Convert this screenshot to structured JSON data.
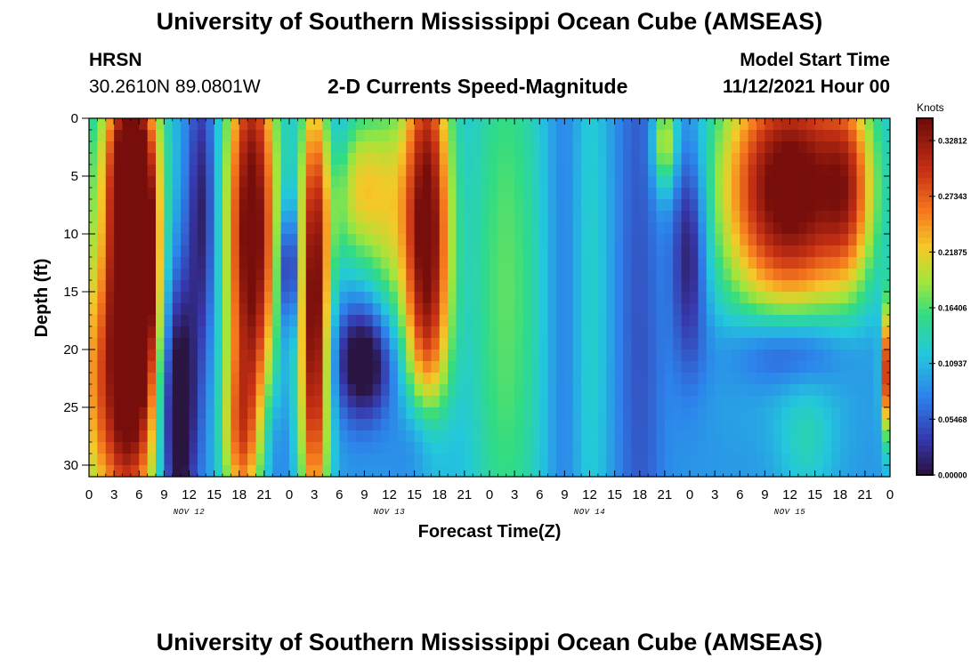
{
  "header": {
    "title": "University of Southern Mississippi Ocean Cube (AMSEAS)",
    "station": "HRSN",
    "coordinates": "30.2610N  89.0801W",
    "subtitle": "2-D Currents Speed-Magnitude",
    "model_start_label": "Model Start Time",
    "model_start_value": "11/12/2021 Hour 00"
  },
  "footer": {
    "title": "University of Southern Mississippi Ocean Cube (AMSEAS)"
  },
  "chart_data": {
    "type": "heatmap",
    "title": "2-D Currents Speed-Magnitude",
    "xlabel": "Forecast Time(Z)",
    "ylabel": "Depth (ft)",
    "xlim": [
      0,
      96
    ],
    "ylim": [
      0,
      31
    ],
    "x_tick_values": [
      0,
      3,
      6,
      9,
      12,
      15,
      18,
      21,
      24,
      27,
      30,
      33,
      36,
      39,
      42,
      45,
      48,
      51,
      54,
      57,
      60,
      63,
      66,
      69,
      72,
      75,
      78,
      81,
      84,
      87,
      90,
      93,
      96
    ],
    "x_tick_labels": [
      "0",
      "3",
      "6",
      "9",
      "12",
      "15",
      "18",
      "21",
      "0",
      "3",
      "6",
      "9",
      "12",
      "15",
      "18",
      "21",
      "0",
      "3",
      "6",
      "9",
      "12",
      "15",
      "18",
      "21",
      "0",
      "3",
      "6",
      "9",
      "12",
      "15",
      "18",
      "21",
      "0"
    ],
    "y_tick_values": [
      0,
      5,
      10,
      15,
      20,
      25,
      30
    ],
    "y_tick_labels": [
      "0",
      "5",
      "10",
      "15",
      "20",
      "25",
      "30"
    ],
    "day_labels": [
      {
        "x": 12,
        "text": "NOV 12"
      },
      {
        "x": 36,
        "text": "NOV 13"
      },
      {
        "x": 60,
        "text": "NOV 14"
      },
      {
        "x": 84,
        "text": "NOV 15"
      }
    ],
    "colorbar": {
      "units": "Knots",
      "min": 0.0,
      "max": 0.35,
      "ticks": [
        {
          "value": 0.0,
          "label": "0.00000"
        },
        {
          "value": 0.05468,
          "label": "0.05468"
        },
        {
          "value": 0.10937,
          "label": "0.10937"
        },
        {
          "value": 0.16406,
          "label": "0.16406"
        },
        {
          "value": 0.21875,
          "label": "0.21875"
        },
        {
          "value": 0.27343,
          "label": "0.27343"
        },
        {
          "value": 0.32812,
          "label": "0.32812"
        }
      ]
    },
    "grid": {
      "x_step_hours": 1,
      "y_step_ft": 1,
      "features": [
        {
          "h": 5.5,
          "d": 13,
          "sh": 1.8,
          "sd": 6,
          "a": 0.32
        },
        {
          "h": 4.5,
          "d": 24,
          "sh": 3.0,
          "sd": 9,
          "a": 0.27
        },
        {
          "h": 5.0,
          "d": 3,
          "sh": 2.4,
          "sd": 6,
          "a": 0.26
        },
        {
          "h": 0.5,
          "d": 18,
          "sh": 1.0,
          "sd": 12,
          "a": 0.05
        },
        {
          "h": 10.5,
          "d": 25,
          "sh": 1.6,
          "sd": 8,
          "a": -0.15
        },
        {
          "h": 13.5,
          "d": 8,
          "sh": 1.2,
          "sd": 9,
          "a": -0.08
        },
        {
          "h": 19.5,
          "d": 10,
          "sh": 2.2,
          "sd": 14,
          "a": 0.28
        },
        {
          "h": 18.0,
          "d": 28,
          "sh": 1.5,
          "sd": 5,
          "a": 0.1
        },
        {
          "h": 22.0,
          "d": 28,
          "sh": 1.5,
          "sd": 6,
          "a": -0.05
        },
        {
          "h": 24.0,
          "d": 13,
          "sh": 0.8,
          "sd": 4,
          "a": -0.12
        },
        {
          "h": 27.0,
          "d": 17,
          "sh": 1.3,
          "sd": 14,
          "a": 0.27
        },
        {
          "h": 30.0,
          "d": 3,
          "sh": 1.2,
          "sd": 4,
          "a": -0.03
        },
        {
          "h": 33.0,
          "d": 21,
          "sh": 2.5,
          "sd": 3.5,
          "a": -0.12
        },
        {
          "h": 32.0,
          "d": 6,
          "sh": 2.5,
          "sd": 5,
          "a": 0.12
        },
        {
          "h": 36.0,
          "d": 8,
          "sh": 2.0,
          "sd": 8,
          "a": 0.08
        },
        {
          "h": 40.5,
          "d": 10,
          "sh": 2.0,
          "sd": 13,
          "a": 0.27
        },
        {
          "h": 40.0,
          "d": 28,
          "sh": 2.0,
          "sd": 4,
          "a": -0.08
        },
        {
          "h": 50.0,
          "d": 15,
          "sh": 3.5,
          "sd": 25,
          "a": 0.08
        },
        {
          "h": 57.0,
          "d": 15,
          "sh": 1.5,
          "sd": 25,
          "a": -0.03
        },
        {
          "h": 60.0,
          "d": 15,
          "sh": 1.8,
          "sd": 25,
          "a": 0.04
        },
        {
          "h": 66.0,
          "d": 15,
          "sh": 2.0,
          "sd": 30,
          "a": -0.04
        },
        {
          "h": 69.0,
          "d": 2,
          "sh": 1.0,
          "sd": 3,
          "a": 0.12
        },
        {
          "h": 72.0,
          "d": 11,
          "sh": 1.5,
          "sd": 7,
          "a": -0.1
        },
        {
          "h": 84.0,
          "d": 6,
          "sh": 6.0,
          "sd": 8,
          "a": 0.28
        },
        {
          "h": 91.0,
          "d": 6,
          "sh": 2.0,
          "sd": 6,
          "a": 0.1
        },
        {
          "h": 84.0,
          "d": 20,
          "sh": 5.0,
          "sd": 2.5,
          "a": -0.08
        },
        {
          "h": 86.0,
          "d": 28,
          "sh": 2.5,
          "sd": 4,
          "a": 0.04
        },
        {
          "h": 96.0,
          "d": 22,
          "sh": 0.6,
          "sd": 4,
          "a": 0.28
        }
      ]
    }
  }
}
